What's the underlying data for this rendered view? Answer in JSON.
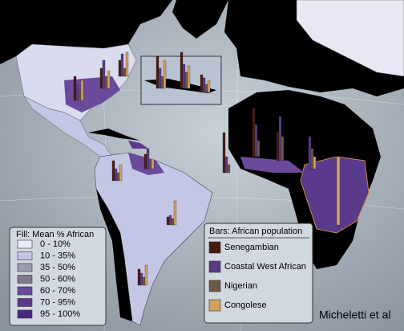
{
  "fill_legend": {
    "title": "Fill: Mean % African",
    "entries": [
      "0 - 10%",
      "10 - 35%",
      "35 - 50%",
      "50 - 60%",
      "60 - 70%",
      "70 - 95%",
      "95 - 100%"
    ]
  },
  "bars_legend": {
    "title": "Bars: African population",
    "entries": [
      "Senegambian",
      "Coastal West African",
      "Nigerian",
      "Congolese"
    ]
  },
  "credit": "Micheletti et al"
}
